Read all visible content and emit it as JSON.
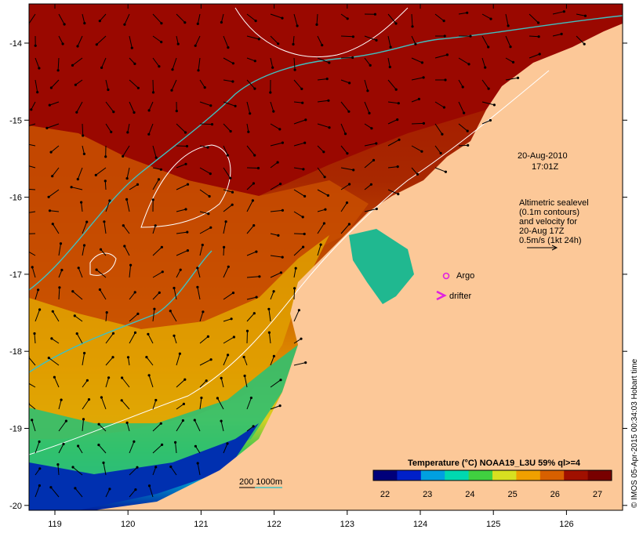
{
  "map": {
    "timestamp": {
      "date": "20-Aug-2010",
      "time": "17:01Z"
    },
    "altimetry_note": [
      "Altimetric sealevel",
      "(0.1m contours)",
      "and velocity for",
      "20-Aug 17Z",
      "0.5m/s (1kt 24h)"
    ],
    "legend": {
      "argo": "Argo",
      "drifter": "drifter"
    },
    "bathymetry_legend": "200  1000m",
    "colorbar": {
      "title": "Temperature (°C) NOAA19_L3U 59% ql>=4",
      "ticks": [
        "22",
        "23",
        "24",
        "25",
        "26",
        "27"
      ],
      "colors": [
        "#00007a",
        "#0020c8",
        "#00a0e0",
        "#00d8b0",
        "#40d040",
        "#d8e020",
        "#f0a000",
        "#d86000",
        "#a01000",
        "#780000"
      ]
    },
    "credit": "© IMOS 05-Apr-2015 00:34:03 Hobart time",
    "x_axis": {
      "ticks": [
        "119",
        "120",
        "121",
        "122",
        "123",
        "124",
        "125",
        "126"
      ]
    },
    "y_axis": {
      "ticks": [
        "-14",
        "-15",
        "-16",
        "-17",
        "-18",
        "-19",
        "-20"
      ]
    },
    "colors": {
      "land": "#fcc898",
      "shelf_contour": "#40c0c0",
      "sealevel_contour": "#ffffff",
      "argo": "#e020e0",
      "drifter": "#e020e0"
    }
  }
}
